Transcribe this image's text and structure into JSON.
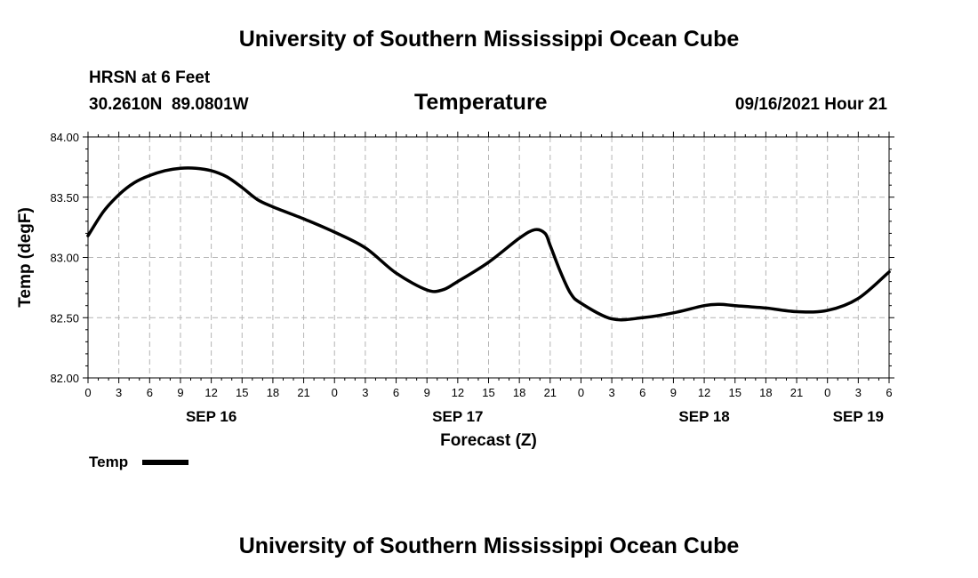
{
  "header": {
    "title": "University of Southern Mississippi Ocean Cube",
    "station": "HRSN at 6 Feet",
    "coords": "30.2610N  89.0801W",
    "variable": "Temperature",
    "timestamp": "09/16/2021 Hour 21"
  },
  "footer": {
    "title": "University of Southern Mississippi Ocean Cube"
  },
  "legend": {
    "label": "Temp"
  },
  "colors": {
    "line": "#000000",
    "grid": "#b4b4b4"
  },
  "chart_data": {
    "type": "line",
    "title": "Temperature",
    "xlabel": "Forecast (Z)",
    "ylabel": "Temp (degF)",
    "xlim": [
      0,
      78
    ],
    "ylim": [
      82.0,
      84.0
    ],
    "y_ticks": [
      "82.00",
      "82.50",
      "83.00",
      "83.50",
      "84.00"
    ],
    "x_tick_labels": [
      "0",
      "3",
      "6",
      "9",
      "12",
      "15",
      "18",
      "21",
      "0",
      "3",
      "6",
      "9",
      "12",
      "15",
      "18",
      "21",
      "0",
      "3",
      "6",
      "9",
      "12",
      "15",
      "18",
      "21",
      "0",
      "3",
      "6"
    ],
    "x_day_labels": [
      {
        "label": "SEP 16",
        "hour": 12
      },
      {
        "label": "SEP 17",
        "hour": 36
      },
      {
        "label": "SEP 18",
        "hour": 60
      },
      {
        "label": "SEP 19",
        "hour": 75
      }
    ],
    "grid": true,
    "series": [
      {
        "name": "Temp",
        "x": [
          0,
          1.5,
          3,
          4.5,
          6,
          7.5,
          9,
          10.5,
          12,
          13.5,
          15,
          16.5,
          18,
          21,
          24,
          27,
          30,
          33,
          34.5,
          36,
          39,
          42,
          43.5,
          44.5,
          45,
          46,
          47,
          48,
          51,
          54,
          57,
          60,
          61.5,
          63,
          66,
          69,
          72,
          75,
          78
        ],
        "values": [
          83.18,
          83.38,
          83.52,
          83.62,
          83.68,
          83.72,
          83.74,
          83.74,
          83.72,
          83.67,
          83.58,
          83.48,
          83.42,
          83.32,
          83.21,
          83.08,
          82.87,
          82.73,
          82.73,
          82.8,
          82.96,
          83.16,
          83.23,
          83.2,
          83.1,
          82.88,
          82.7,
          82.62,
          82.49,
          82.5,
          82.54,
          82.6,
          82.61,
          82.6,
          82.58,
          82.55,
          82.56,
          82.66,
          82.88
        ]
      }
    ]
  }
}
